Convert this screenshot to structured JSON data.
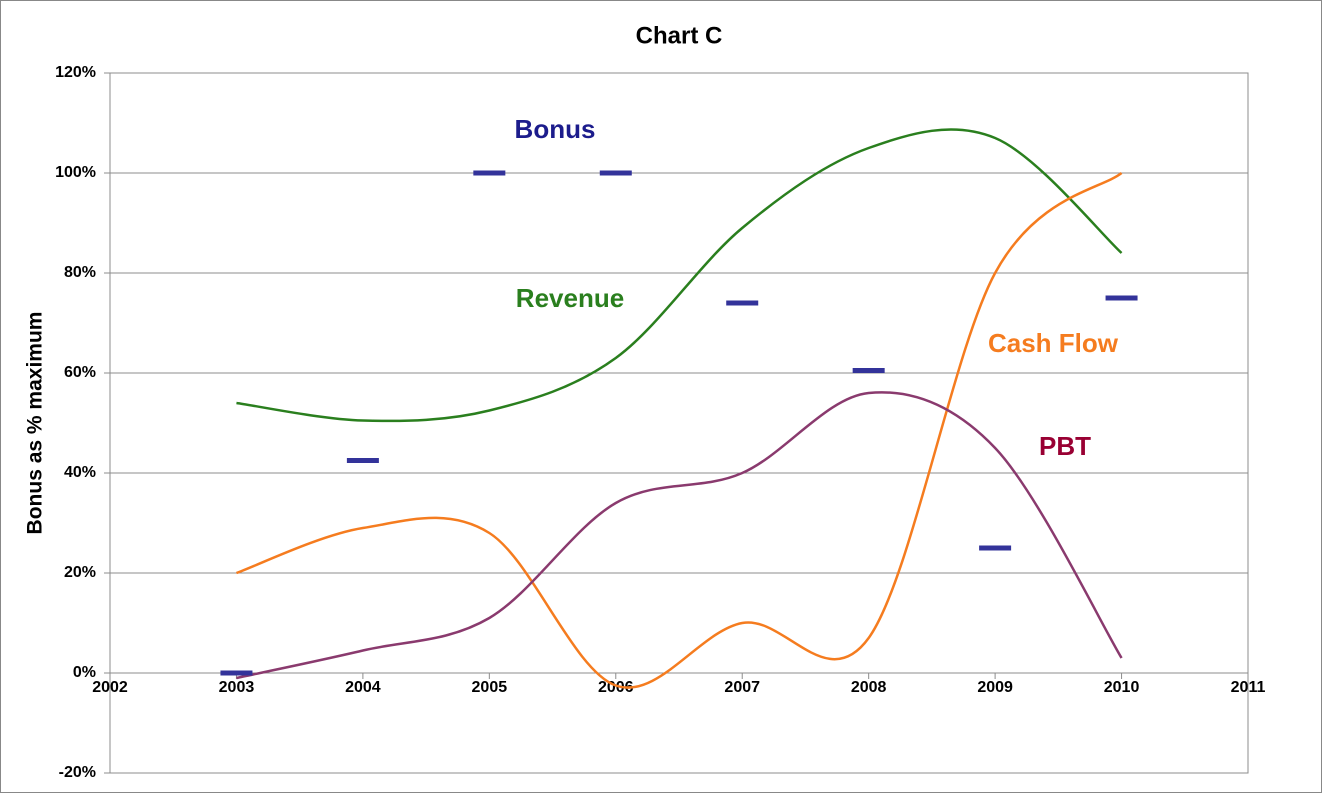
{
  "chart_data": {
    "type": "line",
    "title": "Chart C",
    "y_label": "Bonus as % maximum",
    "x": [
      2003,
      2004,
      2005,
      2006,
      2007,
      2008,
      2009,
      2010
    ],
    "series": [
      {
        "name": "Revenue",
        "color": "#2a7f1e",
        "style": "smooth",
        "values": [
          54,
          50.5,
          52.5,
          63,
          89,
          105,
          107,
          84
        ]
      },
      {
        "name": "Cash Flow",
        "color": "#f57c1f",
        "style": "smooth",
        "values": [
          20,
          29,
          28,
          -2.5,
          10,
          7,
          80,
          100
        ]
      },
      {
        "name": "PBT",
        "color": "#8a3a6e",
        "label_color": "#990033",
        "style": "smooth",
        "values": [
          -1,
          4.5,
          11,
          34,
          40,
          56,
          45,
          3
        ]
      },
      {
        "name": "Bonus",
        "color": "#33339a",
        "label_color": "#1c1c8c",
        "style": "dash",
        "values": [
          0,
          42.5,
          100,
          100,
          74,
          60.5,
          25,
          75
        ]
      }
    ],
    "xlim": [
      2002,
      2011
    ],
    "xticks": [
      2002,
      2003,
      2004,
      2005,
      2006,
      2007,
      2008,
      2009,
      2010,
      2011
    ],
    "ylim": [
      -20,
      120
    ],
    "yticks": [
      {
        "value": -20,
        "label": "-20%"
      },
      {
        "value": 0,
        "label": "0%"
      },
      {
        "value": 20,
        "label": "20%"
      },
      {
        "value": 40,
        "label": "40%"
      },
      {
        "value": 60,
        "label": "60%"
      },
      {
        "value": 80,
        "label": "80%"
      },
      {
        "value": 100,
        "label": "100%"
      },
      {
        "value": 120,
        "label": "120%"
      }
    ],
    "grid": true
  }
}
